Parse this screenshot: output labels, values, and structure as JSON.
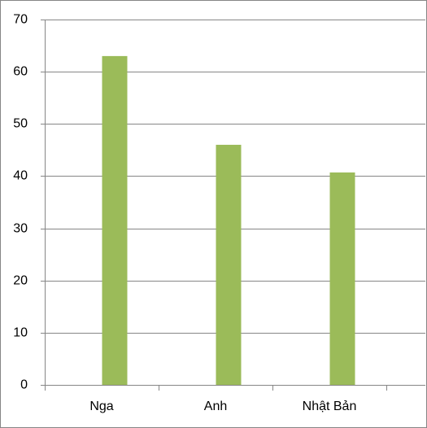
{
  "chart_data": {
    "type": "bar",
    "categories": [
      "Nga",
      "Anh",
      "Nhật Bản"
    ],
    "values": [
      63,
      46,
      40.7
    ],
    "color": "#9bbb59",
    "ylim": [
      0,
      70
    ],
    "yticks": [
      0,
      10,
      20,
      30,
      40,
      50,
      60,
      70
    ],
    "grid": true
  }
}
